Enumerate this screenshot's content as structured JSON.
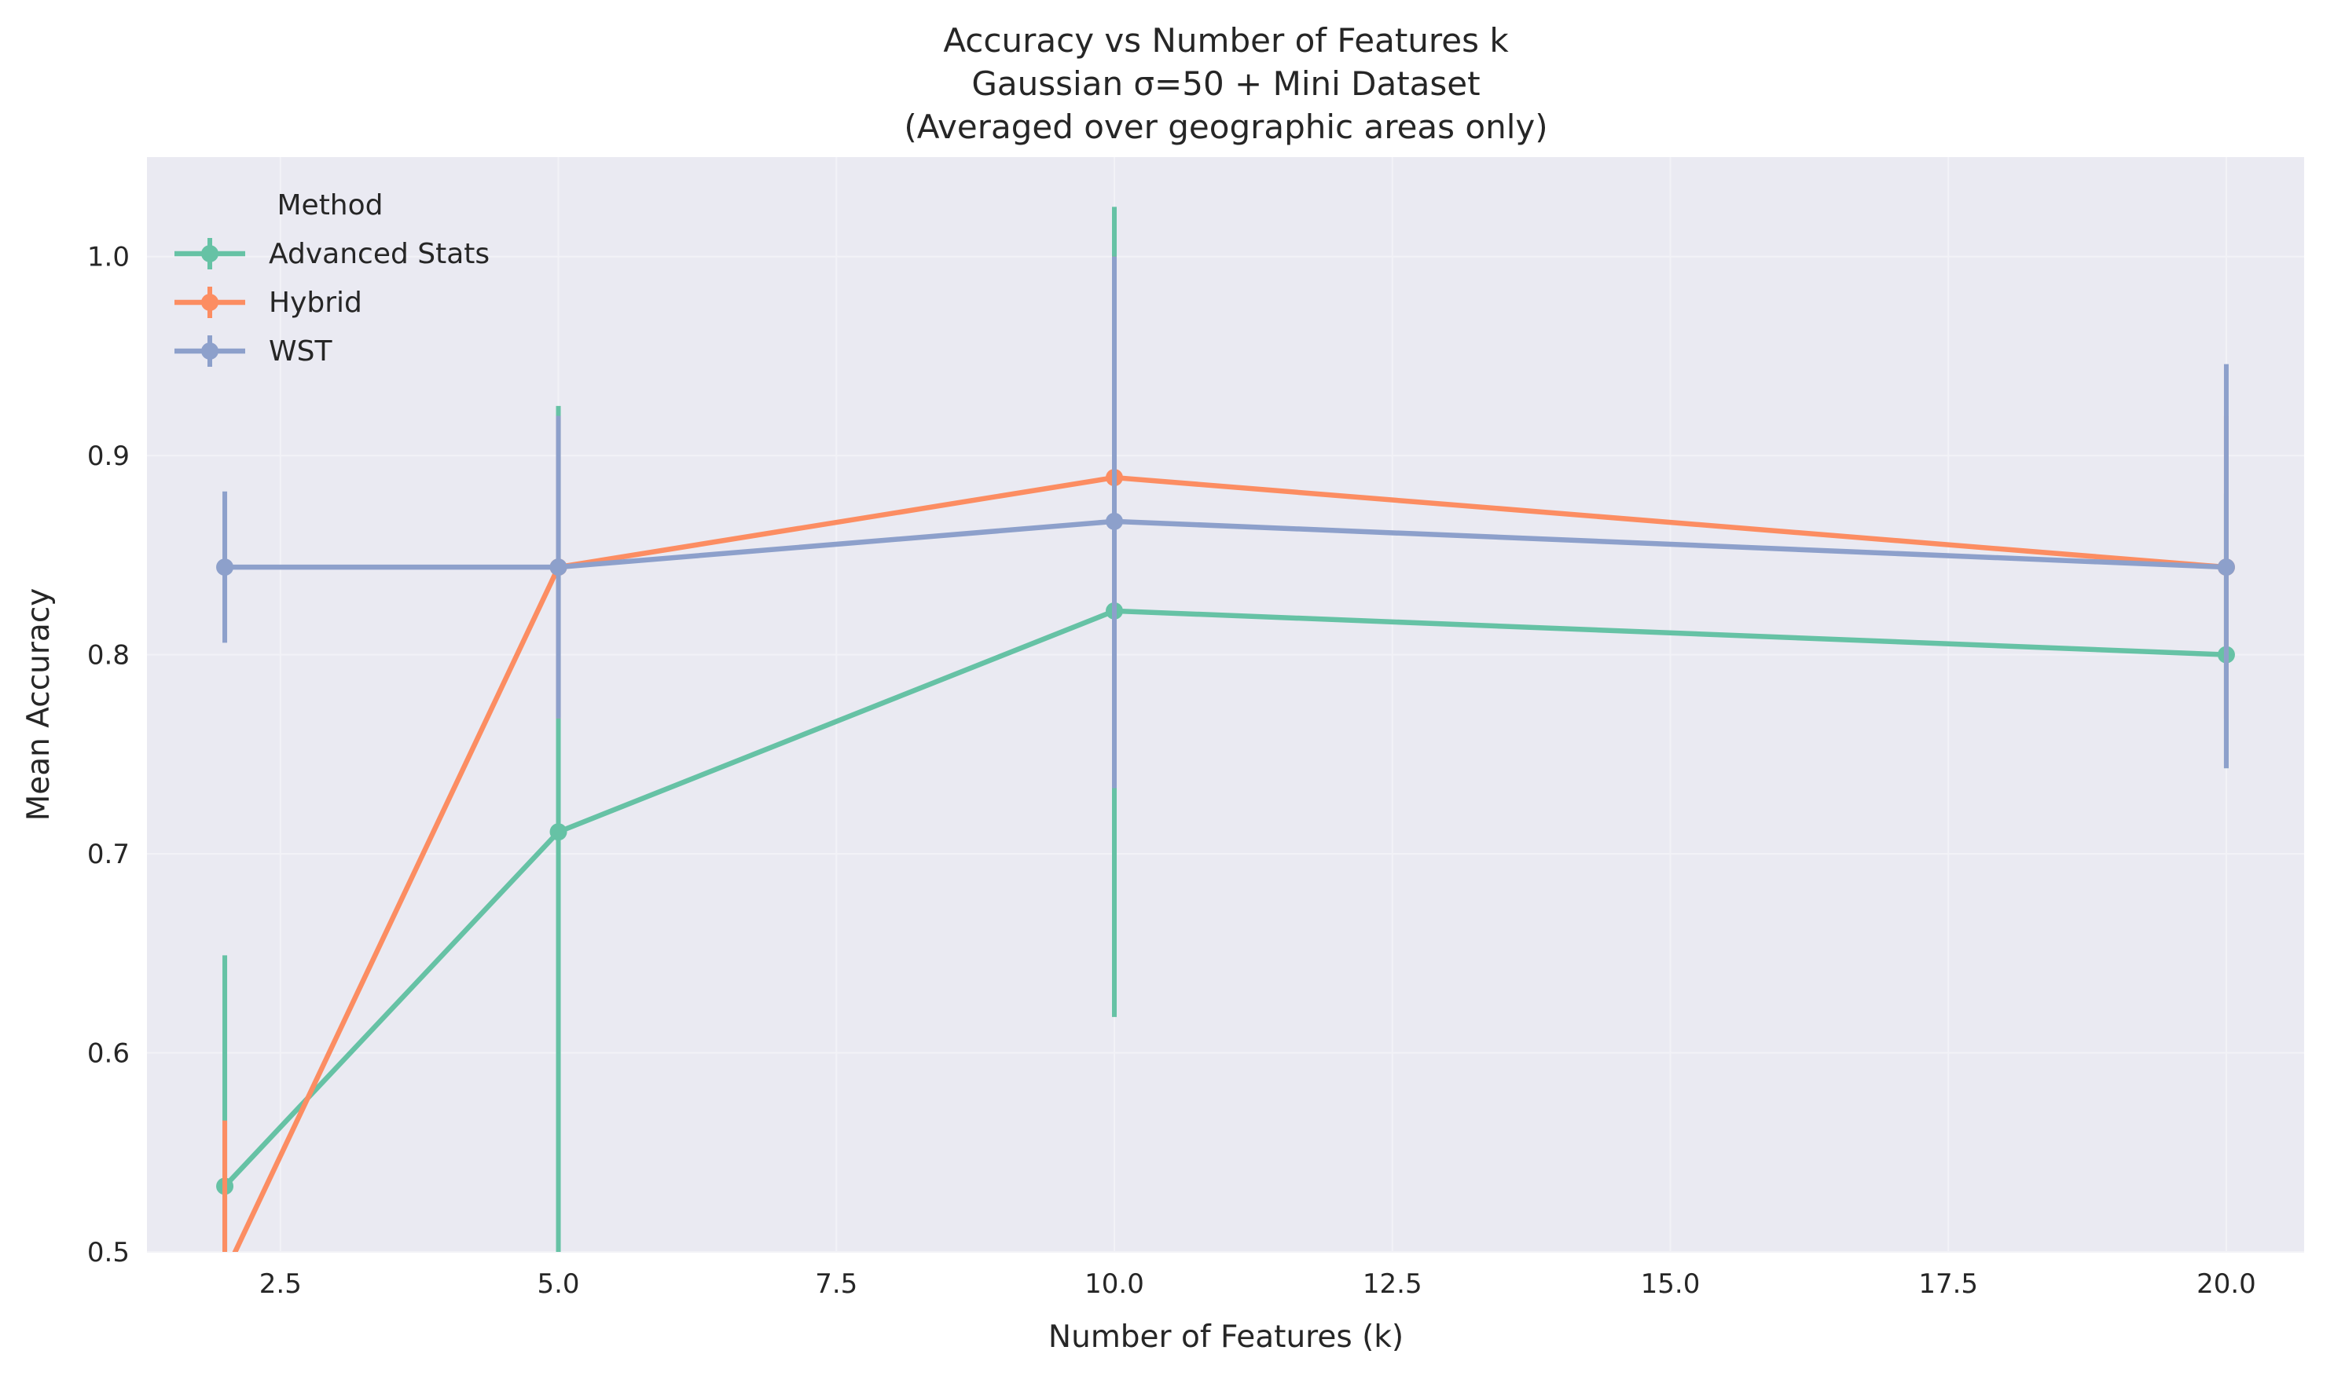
{
  "chart_data": {
    "type": "line",
    "title_lines": [
      "Accuracy vs Number of Features k",
      "Gaussian σ=50 + Mini Dataset",
      "(Averaged over geographic areas only)"
    ],
    "xlabel": "Number of Features (k)",
    "ylabel": "Mean Accuracy",
    "xlim": [
      1.3,
      20.7
    ],
    "ylim": [
      0.5,
      1.05
    ],
    "x_ticks": [
      2.5,
      5.0,
      7.5,
      10.0,
      12.5,
      15.0,
      17.5,
      20.0
    ],
    "x_tick_labels": [
      "2.5",
      "5.0",
      "7.5",
      "10.0",
      "12.5",
      "15.0",
      "17.5",
      "20.0"
    ],
    "y_ticks": [
      0.5,
      0.6,
      0.7,
      0.8,
      0.9,
      1.0
    ],
    "y_tick_labels": [
      "0.5",
      "0.6",
      "0.7",
      "0.8",
      "0.9",
      "1.0"
    ],
    "grid": true,
    "background": "#eaeaf2",
    "legend": {
      "title": "Method",
      "placement": "top-left"
    },
    "series": [
      {
        "name": "Advanced Stats",
        "color": "#66c2a5",
        "x": [
          2,
          5,
          10,
          20
        ],
        "y": [
          0.533,
          0.711,
          0.822,
          0.8
        ],
        "yerr_low": [
          0.417,
          0.5,
          0.618,
          0.743
        ],
        "yerr_high": [
          0.649,
          0.925,
          1.025,
          0.881
        ]
      },
      {
        "name": "Hybrid",
        "color": "#fc8d62",
        "x": [
          2,
          5,
          10,
          20
        ],
        "y": [
          0.489,
          0.844,
          0.889,
          0.844
        ],
        "yerr_low": [
          0.41,
          0.768,
          0.734,
          0.768
        ],
        "yerr_high": [
          0.566,
          0.92,
          1.0,
          0.92
        ]
      },
      {
        "name": "WST",
        "color": "#8da0cb",
        "x": [
          2,
          5,
          10,
          20
        ],
        "y": [
          0.844,
          0.844,
          0.867,
          0.844
        ],
        "yerr_low": [
          0.806,
          0.768,
          0.733,
          0.743
        ],
        "yerr_high": [
          0.882,
          0.92,
          1.0,
          0.946
        ]
      }
    ]
  }
}
